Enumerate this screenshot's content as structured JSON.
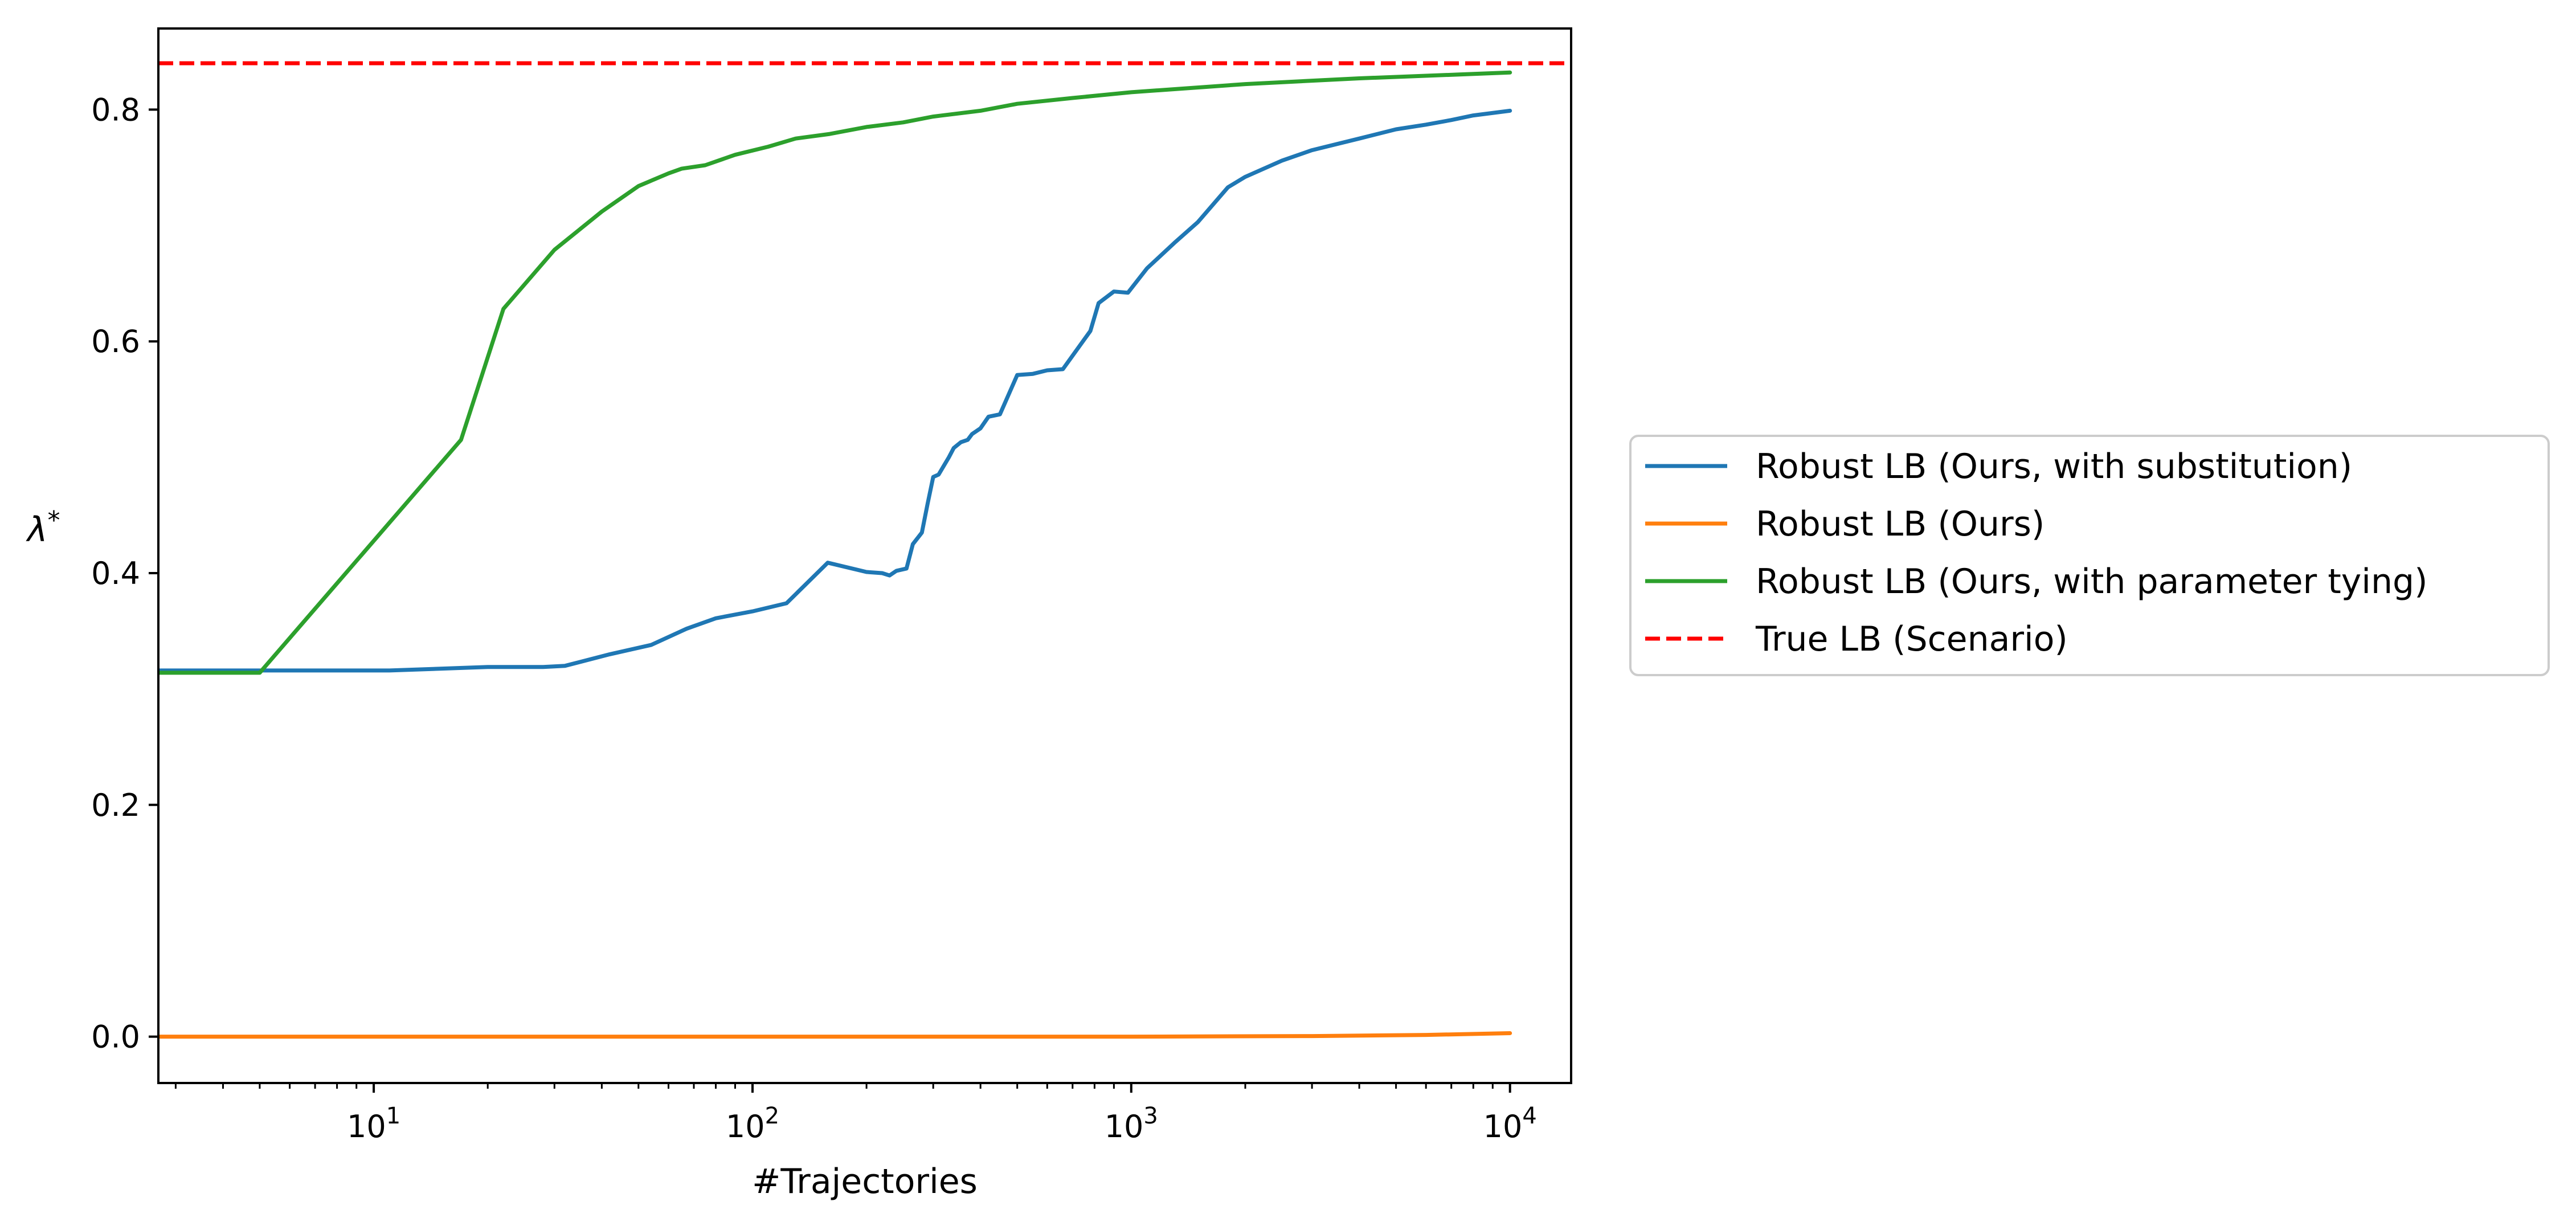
{
  "chart_data": {
    "type": "line",
    "title": "",
    "xlabel": "#Trajectories",
    "ylabel": "λ*",
    "ylabel_main": "λ",
    "ylabel_sup": "*",
    "xscale": "log",
    "xlim": [
      2.7,
      14500
    ],
    "ylim": [
      -0.04,
      0.87
    ],
    "xticks": [
      {
        "value": 10,
        "base": "10",
        "exp": "1"
      },
      {
        "value": 100,
        "base": "10",
        "exp": "2"
      },
      {
        "value": 1000,
        "base": "10",
        "exp": "3"
      },
      {
        "value": 10000,
        "base": "10",
        "exp": "4"
      }
    ],
    "yticks": [
      {
        "value": 0.0,
        "label": "0.0"
      },
      {
        "value": 0.2,
        "label": "0.2"
      },
      {
        "value": 0.4,
        "label": "0.4"
      },
      {
        "value": 0.6,
        "label": "0.6"
      },
      {
        "value": 0.8,
        "label": "0.8"
      }
    ],
    "grid": false,
    "legend_position": "right-center (outside)",
    "series": [
      {
        "name": "Robust LB (Ours, with substitution)",
        "color": "#1f77b4",
        "style": "solid",
        "points": [
          [
            2.7,
            0.316
          ],
          [
            5,
            0.316
          ],
          [
            11,
            0.316
          ],
          [
            20,
            0.319
          ],
          [
            28,
            0.319
          ],
          [
            32,
            0.32
          ],
          [
            42,
            0.33
          ],
          [
            54,
            0.338
          ],
          [
            67,
            0.352
          ],
          [
            80,
            0.361
          ],
          [
            100,
            0.367
          ],
          [
            123,
            0.374
          ],
          [
            158,
            0.409
          ],
          [
            200,
            0.401
          ],
          [
            220,
            0.4
          ],
          [
            230,
            0.398
          ],
          [
            240,
            0.402
          ],
          [
            255,
            0.404
          ],
          [
            265,
            0.425
          ],
          [
            280,
            0.435
          ],
          [
            290,
            0.46
          ],
          [
            300,
            0.483
          ],
          [
            310,
            0.485
          ],
          [
            330,
            0.5
          ],
          [
            340,
            0.508
          ],
          [
            355,
            0.513
          ],
          [
            370,
            0.515
          ],
          [
            380,
            0.52
          ],
          [
            400,
            0.525
          ],
          [
            420,
            0.535
          ],
          [
            450,
            0.537
          ],
          [
            500,
            0.571
          ],
          [
            550,
            0.572
          ],
          [
            600,
            0.575
          ],
          [
            660,
            0.576
          ],
          [
            780,
            0.609
          ],
          [
            820,
            0.633
          ],
          [
            900,
            0.643
          ],
          [
            980,
            0.642
          ],
          [
            1100,
            0.663
          ],
          [
            1300,
            0.685
          ],
          [
            1500,
            0.703
          ],
          [
            1800,
            0.733
          ],
          [
            2000,
            0.742
          ],
          [
            2500,
            0.756
          ],
          [
            3000,
            0.765
          ],
          [
            4000,
            0.775
          ],
          [
            5000,
            0.783
          ],
          [
            6000,
            0.787
          ],
          [
            7000,
            0.791
          ],
          [
            8000,
            0.795
          ],
          [
            10000,
            0.799
          ]
        ]
      },
      {
        "name": "Robust LB (Ours)",
        "color": "#ff7f0e",
        "style": "solid",
        "points": [
          [
            2.7,
            0.0
          ],
          [
            100,
            0.0
          ],
          [
            1000,
            0.0
          ],
          [
            3000,
            0.0005
          ],
          [
            6000,
            0.0015
          ],
          [
            10000,
            0.003
          ]
        ]
      },
      {
        "name": "Robust LB (Ours, with parameter tying)",
        "color": "#2ca02c",
        "style": "solid",
        "points": [
          [
            2.7,
            0.314
          ],
          [
            5,
            0.314
          ],
          [
            17,
            0.515
          ],
          [
            22,
            0.628
          ],
          [
            30,
            0.679
          ],
          [
            40,
            0.712
          ],
          [
            50,
            0.734
          ],
          [
            60,
            0.745
          ],
          [
            65,
            0.749
          ],
          [
            75,
            0.752
          ],
          [
            90,
            0.761
          ],
          [
            110,
            0.768
          ],
          [
            130,
            0.775
          ],
          [
            160,
            0.779
          ],
          [
            200,
            0.785
          ],
          [
            250,
            0.789
          ],
          [
            300,
            0.794
          ],
          [
            400,
            0.799
          ],
          [
            500,
            0.805
          ],
          [
            700,
            0.81
          ],
          [
            1000,
            0.815
          ],
          [
            2000,
            0.822
          ],
          [
            4000,
            0.827
          ],
          [
            10000,
            0.832
          ]
        ]
      },
      {
        "name": "True LB (Scenario)",
        "color": "#ff0000",
        "style": "dashed",
        "points": [
          [
            2.7,
            0.84
          ],
          [
            14500,
            0.84
          ]
        ]
      }
    ]
  }
}
